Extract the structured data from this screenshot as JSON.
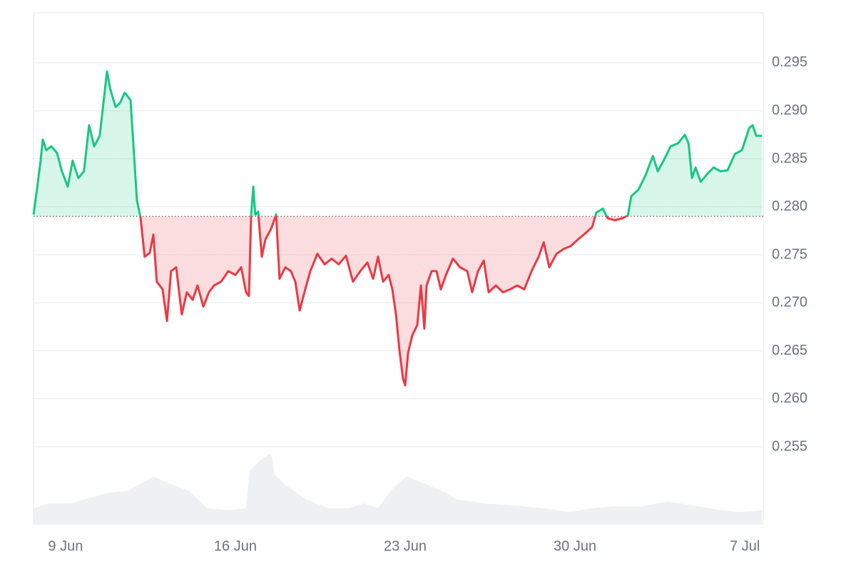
{
  "chart_data": {
    "type": "line",
    "x": [
      7.68,
      7.82,
      7.97,
      8.06,
      8.21,
      8.41,
      8.65,
      8.85,
      9.09,
      9.29,
      9.53,
      9.76,
      9.97,
      10.18,
      10.41,
      10.71,
      10.85,
      11.06,
      11.24,
      11.44,
      11.68,
      11.79,
      11.94,
      12.09,
      12.26,
      12.47,
      12.62,
      12.76,
      13.0,
      13.18,
      13.35,
      13.56,
      13.79,
      14.0,
      14.24,
      14.44,
      14.68,
      14.91,
      15.12,
      15.41,
      15.71,
      16.0,
      16.24,
      16.44,
      16.56,
      16.65,
      16.74,
      16.82,
      16.94,
      17.09,
      17.24,
      17.47,
      17.68,
      17.82,
      18.06,
      18.29,
      18.47,
      18.65,
      18.88,
      19.09,
      19.38,
      19.68,
      19.97,
      20.26,
      20.56,
      20.85,
      21.15,
      21.44,
      21.68,
      21.88,
      22.09,
      22.32,
      22.47,
      22.62,
      22.76,
      22.91,
      23.0,
      23.12,
      23.29,
      23.5,
      23.65,
      23.79,
      23.88,
      24.09,
      24.29,
      24.47,
      24.68,
      24.97,
      25.26,
      25.56,
      25.76,
      26.0,
      26.24,
      26.44,
      26.74,
      27.03,
      27.32,
      27.62,
      27.91,
      28.21,
      28.5,
      28.71,
      28.94,
      29.24,
      29.53,
      29.82,
      30.12,
      30.41,
      30.71,
      30.88,
      31.15,
      31.35,
      31.65,
      31.94,
      32.18,
      32.32,
      32.62,
      32.91,
      33.21,
      33.41,
      33.65,
      33.94,
      34.24,
      34.53,
      34.68,
      34.82,
      34.97,
      35.18,
      35.41,
      35.71,
      36.0,
      36.29,
      36.59,
      36.88,
      37.18,
      37.32,
      37.47,
      37.71
    ],
    "values": [
      0.2792,
      0.2818,
      0.2848,
      0.287,
      0.2859,
      0.2863,
      0.2856,
      0.2837,
      0.2821,
      0.2848,
      0.283,
      0.2837,
      0.2885,
      0.2863,
      0.2874,
      0.2941,
      0.2922,
      0.2904,
      0.2908,
      0.2919,
      0.2911,
      0.2867,
      0.2807,
      0.2789,
      0.2748,
      0.2752,
      0.2771,
      0.2722,
      0.2714,
      0.2681,
      0.2733,
      0.2737,
      0.2688,
      0.2711,
      0.2703,
      0.2718,
      0.2696,
      0.2711,
      0.2718,
      0.2722,
      0.2733,
      0.2729,
      0.2737,
      0.2711,
      0.2707,
      0.2792,
      0.2821,
      0.2792,
      0.2795,
      0.2748,
      0.2766,
      0.2777,
      0.2792,
      0.2725,
      0.2737,
      0.2733,
      0.2722,
      0.2692,
      0.2714,
      0.2733,
      0.2751,
      0.274,
      0.2746,
      0.274,
      0.2749,
      0.2722,
      0.2733,
      0.2742,
      0.2725,
      0.2748,
      0.2722,
      0.2729,
      0.2714,
      0.2688,
      0.2651,
      0.2621,
      0.2614,
      0.2648,
      0.2666,
      0.2677,
      0.2718,
      0.2673,
      0.2718,
      0.2733,
      0.2733,
      0.2714,
      0.2729,
      0.2746,
      0.2737,
      0.2733,
      0.2711,
      0.2733,
      0.2744,
      0.2711,
      0.2718,
      0.2711,
      0.2714,
      0.2718,
      0.2714,
      0.2733,
      0.2748,
      0.2763,
      0.2737,
      0.2751,
      0.2756,
      0.2759,
      0.2766,
      0.2772,
      0.2779,
      0.2794,
      0.2798,
      0.2788,
      0.2786,
      0.2788,
      0.2791,
      0.2811,
      0.2818,
      0.2833,
      0.2853,
      0.2837,
      0.2848,
      0.2863,
      0.2866,
      0.2875,
      0.2866,
      0.283,
      0.2841,
      0.2826,
      0.2833,
      0.2841,
      0.2837,
      0.2838,
      0.2855,
      0.2859,
      0.2882,
      0.2885,
      0.2874,
      0.2874
    ],
    "baseline": 0.279,
    "colors": {
      "above": "#16c784",
      "below": "#ea3943"
    },
    "volume": {
      "color": "#eef0f4",
      "axis": "y2",
      "x": [
        7.68,
        8.35,
        9.24,
        10.71,
        11.59,
        12.62,
        13.35,
        14.09,
        14.82,
        15.71,
        16.44,
        16.59,
        17.03,
        17.47,
        17.62,
        18.06,
        18.94,
        19.82,
        20.71,
        21.29,
        21.88,
        22.47,
        23.06,
        23.94,
        24.68,
        25.12,
        26.29,
        27.47,
        28.65,
        29.82,
        30.71,
        31.59,
        32.76,
        33.79,
        34.82,
        36.0,
        36.88,
        37.71
      ],
      "values": [
        17,
        22,
        22,
        33,
        35,
        50,
        42,
        35,
        17,
        15,
        17,
        56,
        67,
        74,
        52,
        41,
        26,
        17,
        17,
        22,
        17,
        37,
        50,
        41,
        33,
        26,
        22,
        20,
        17,
        13,
        17,
        19,
        19,
        24,
        20,
        15,
        13,
        15
      ]
    },
    "xlim": [
      7.68,
      37.76
    ],
    "xticks": [
      {
        "value": 9,
        "label": "9 Jun"
      },
      {
        "value": 16,
        "label": "16 Jun"
      },
      {
        "value": 23,
        "label": "23 Jun"
      },
      {
        "value": 30,
        "label": "30 Jun"
      },
      {
        "value": 37,
        "label": "7 Jul"
      }
    ],
    "ylim": [
      0.2469,
      0.3002
    ],
    "yticks": [
      0.255,
      {
        "value": 0.26,
        "label": "0.260"
      },
      0.265,
      {
        "value": 0.27,
        "label": "0.270"
      },
      0.275,
      {
        "value": 0.28,
        "label": "0.280"
      },
      0.285,
      {
        "value": 0.29,
        "label": "0.290"
      },
      0.295
    ],
    "y2lim": [
      0,
      100
    ],
    "grid": true
  }
}
